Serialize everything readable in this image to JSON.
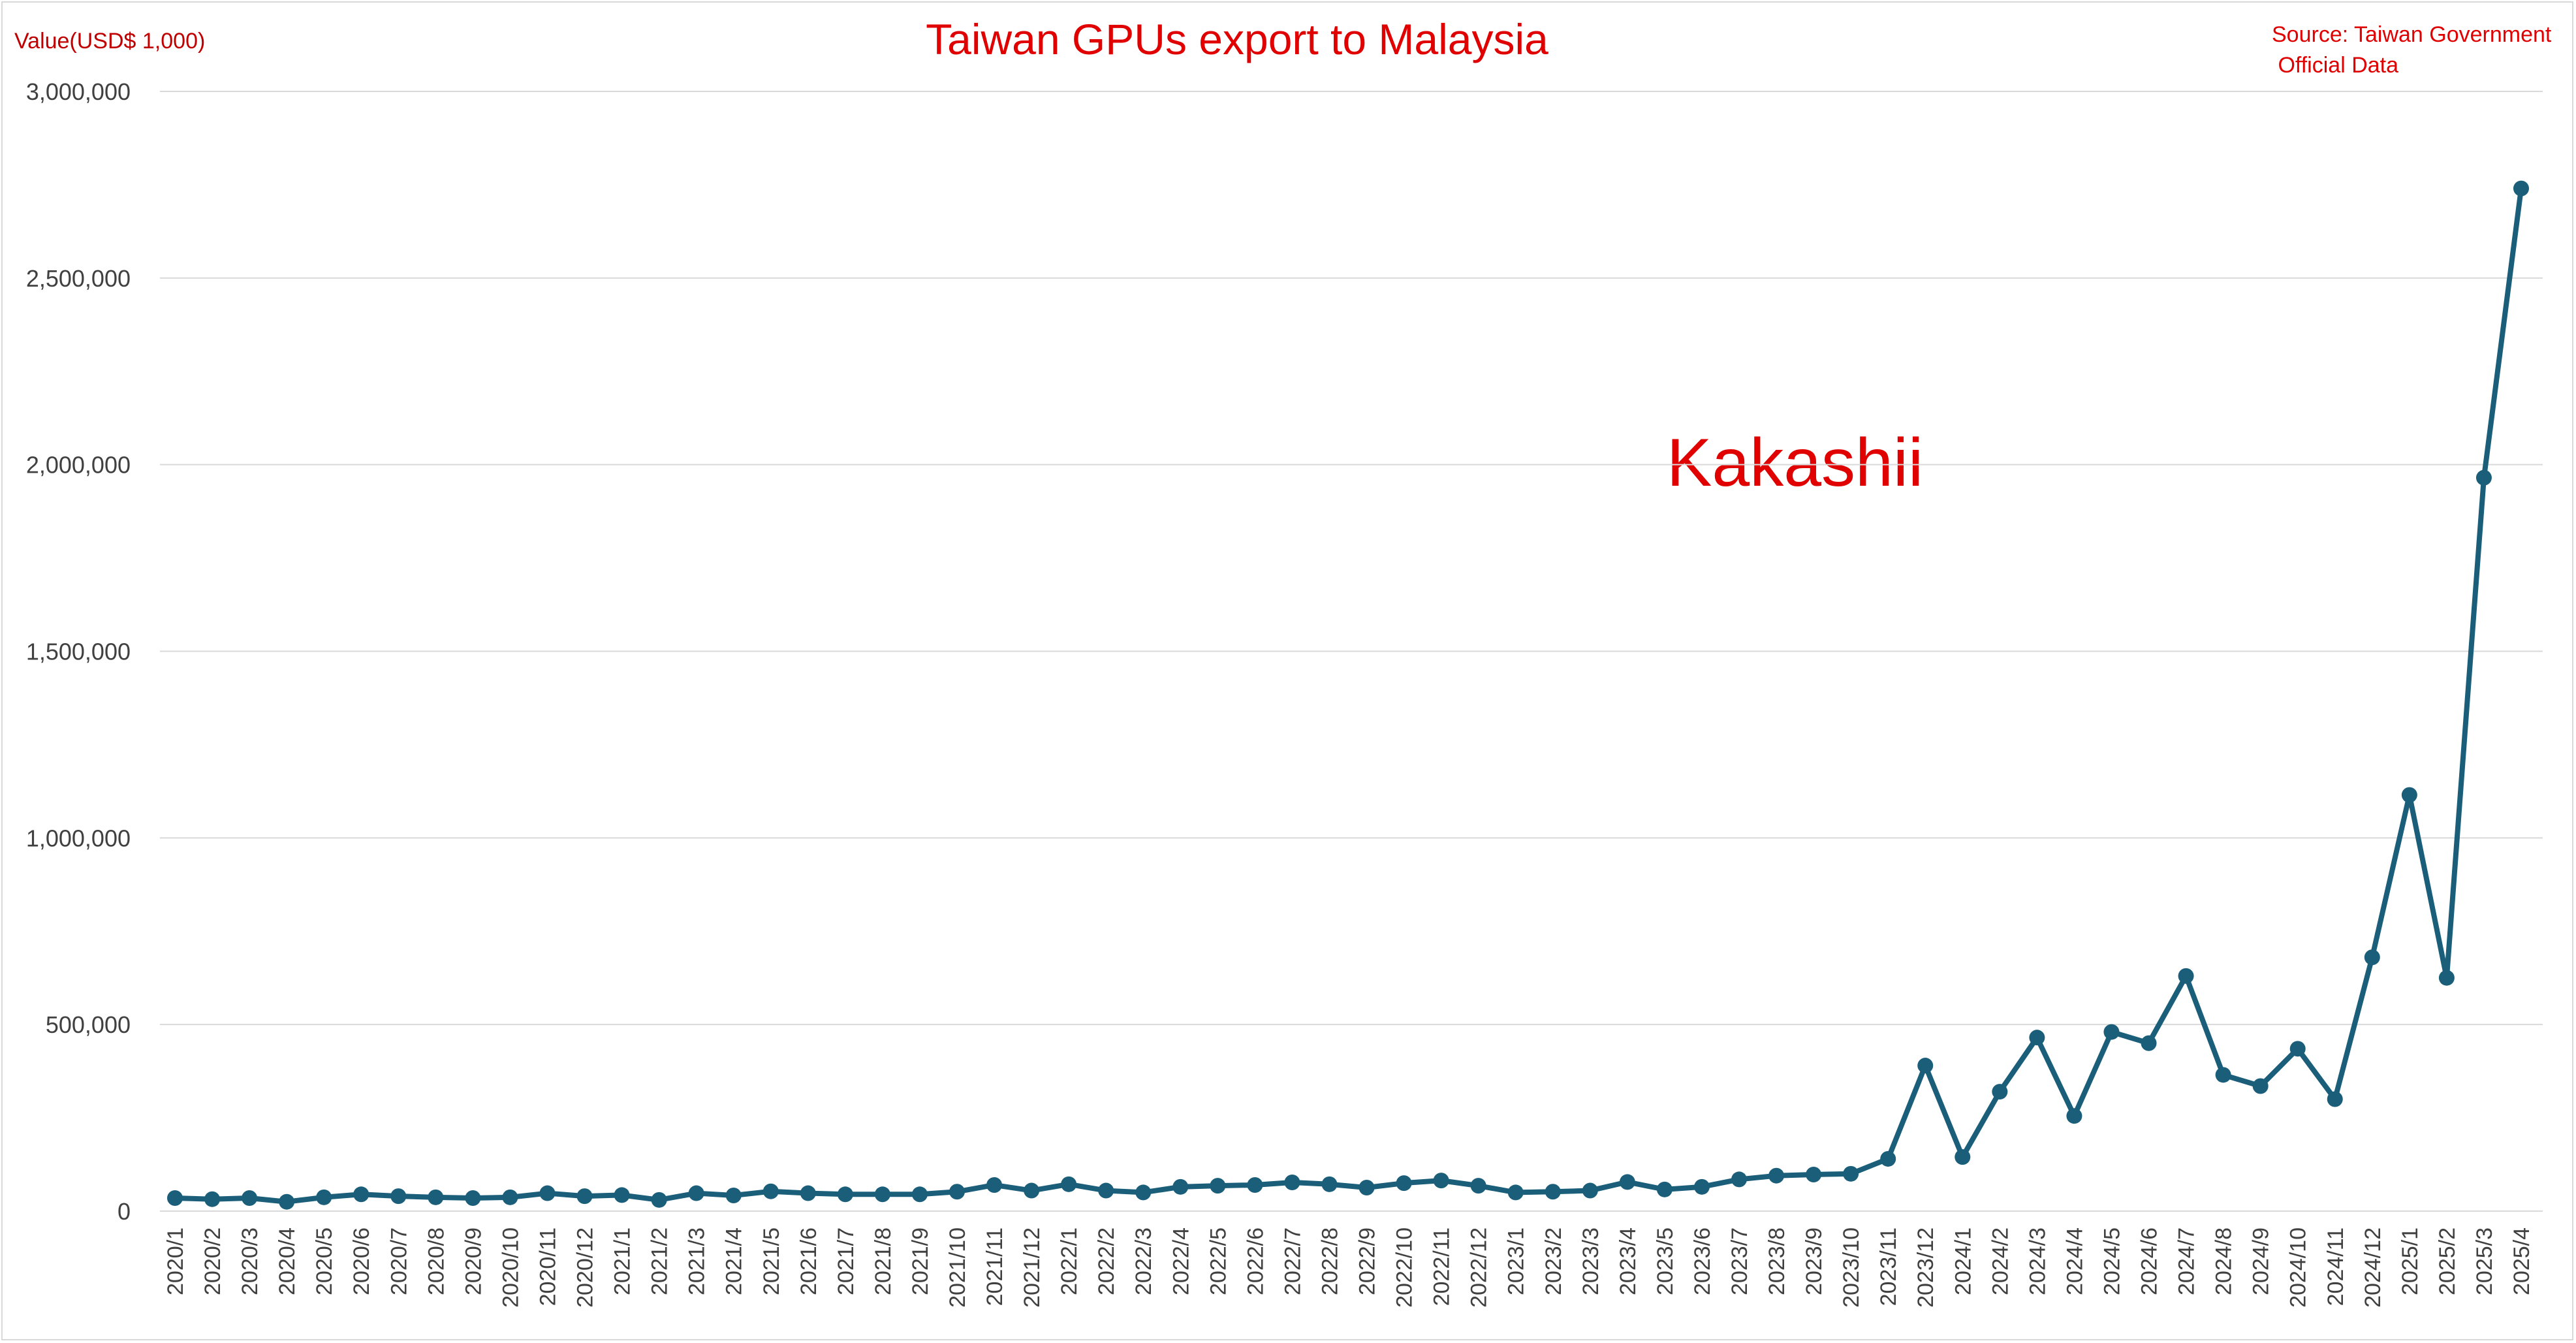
{
  "header": {
    "title": "Taiwan GPUs export to Malaysia",
    "unit_label": "Value(USD$ 1,000)",
    "source_line1": "Source: Taiwan Government",
    "source_line2": " Official Data",
    "watermark": "Kakashii"
  },
  "colors": {
    "series": "#1a5e7a",
    "title": "#e00000",
    "grid": "#d9d9d9",
    "axis_text": "#404040"
  },
  "chart_data": {
    "type": "line",
    "title": "Taiwan GPUs export to Malaysia",
    "ylabel": "Value(USD$ 1,000)",
    "xlabel": "",
    "ylim": [
      0,
      3000000
    ],
    "yticks": [
      0,
      500000,
      1000000,
      1500000,
      2000000,
      2500000,
      3000000
    ],
    "ytick_labels": [
      "0",
      "500,000",
      "1,000,000",
      "1,500,000",
      "2,000,000",
      "2,500,000",
      "3,000,000"
    ],
    "grid": true,
    "legend": "none",
    "categories": [
      "2020/1",
      "2020/2",
      "2020/3",
      "2020/4",
      "2020/5",
      "2020/6",
      "2020/7",
      "2020/8",
      "2020/9",
      "2020/10",
      "2020/11",
      "2020/12",
      "2021/1",
      "2021/2",
      "2021/3",
      "2021/4",
      "2021/5",
      "2021/6",
      "2021/7",
      "2021/8",
      "2021/9",
      "2021/10",
      "2021/11",
      "2021/12",
      "2022/1",
      "2022/2",
      "2022/3",
      "2022/4",
      "2022/5",
      "2022/6",
      "2022/7",
      "2022/8",
      "2022/9",
      "2022/10",
      "2022/11",
      "2022/12",
      "2023/1",
      "2023/2",
      "2023/3",
      "2023/4",
      "2023/5",
      "2023/6",
      "2023/7",
      "2023/8",
      "2023/9",
      "2023/10",
      "2023/11",
      "2023/12",
      "2024/1",
      "2024/2",
      "2024/3",
      "2024/4",
      "2024/5",
      "2024/6",
      "2024/7",
      "2024/8",
      "2024/9",
      "2024/10",
      "2024/11",
      "2024/12",
      "2025/1",
      "2025/2",
      "2025/3",
      "2025/4"
    ],
    "series": [
      {
        "values": [
          35000,
          32000,
          35000,
          25000,
          37000,
          45000,
          40000,
          37000,
          35000,
          37000,
          48000,
          40000,
          43000,
          30000,
          48000,
          42000,
          53000,
          48000,
          45000,
          45000,
          45000,
          52000,
          70000,
          55000,
          72000,
          55000,
          50000,
          65000,
          68000,
          70000,
          77000,
          72000,
          63000,
          75000,
          82000,
          68000,
          50000,
          52000,
          55000,
          78000,
          58000,
          65000,
          85000,
          95000,
          98000,
          100000,
          140000,
          390000,
          145000,
          320000,
          465000,
          255000,
          480000,
          450000,
          630000,
          365000,
          335000,
          435000,
          300000,
          680000,
          1115000,
          625000,
          1965000,
          2740000
        ]
      }
    ]
  }
}
